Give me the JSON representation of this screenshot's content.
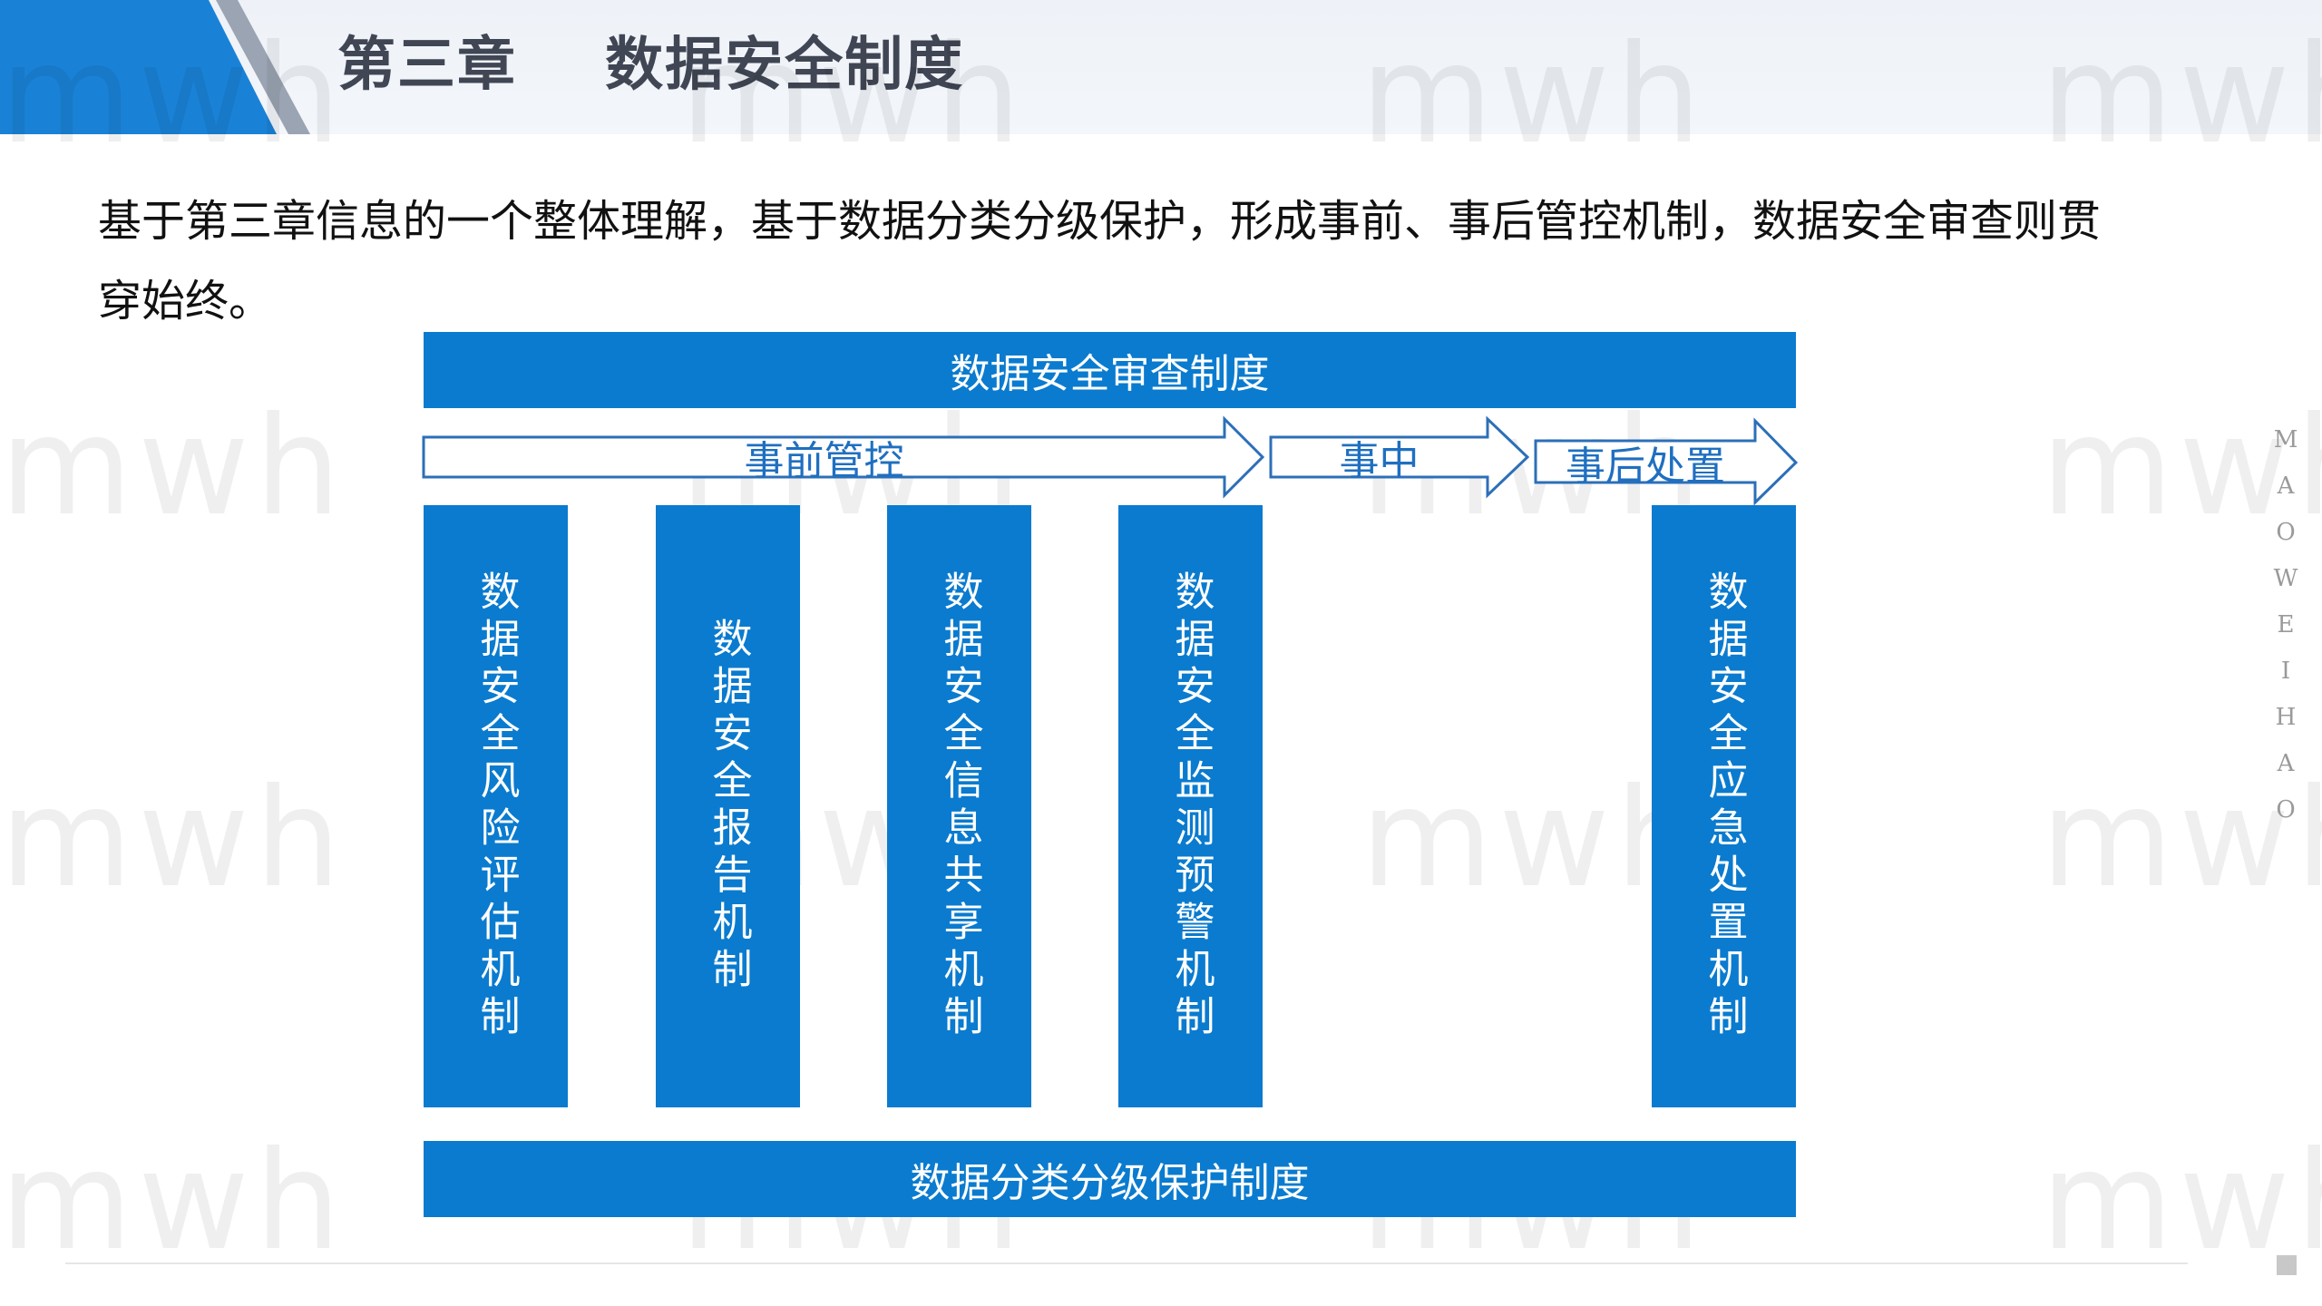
{
  "header": {
    "title": "第三章    数据安全制度"
  },
  "intro": "基于第三章信息的一个整体理解，基于数据分类分级保护，形成事前、事后管控机制，数据安全审查则贯穿始终。",
  "diagram": {
    "top_bar": "数据安全审查制度",
    "bottom_bar": "数据分类分级保护制度",
    "arrows": [
      "事前管控",
      "事中",
      "事后处置"
    ],
    "columns": [
      "数据安全风险评估机制",
      "数据安全报告机制",
      "数据安全信息共享机制",
      "数据安全监测预警机制",
      "数据安全应急处置机制"
    ]
  },
  "watermark": "mwh",
  "side_letters": [
    "M",
    "A",
    "O",
    "W",
    "E",
    "I",
    "H",
    "A",
    "O"
  ],
  "colors": {
    "accent": "#0a7bcf",
    "header_blue": "#1a82d6",
    "arrow_text": "#1f6fc0"
  }
}
